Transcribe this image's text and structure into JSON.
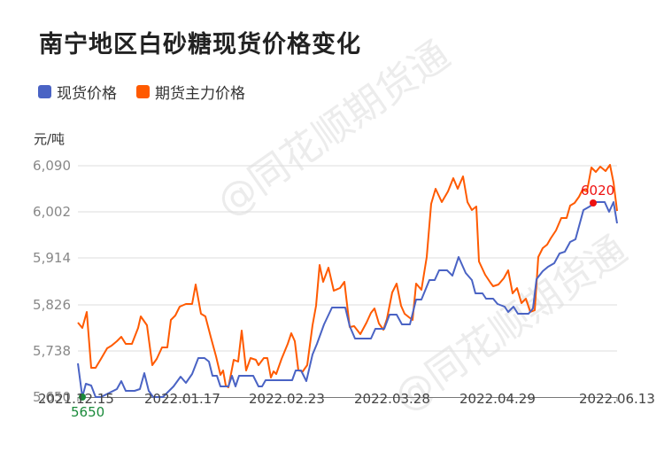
{
  "title": "南宁地区白砂糖现货价格变化",
  "legend": [
    {
      "label": "现货价格",
      "color": "#4a63c4"
    },
    {
      "label": "期货主力价格",
      "color": "#ff5a00"
    }
  ],
  "unit": "元/吨",
  "watermark": "@同花顺期货通",
  "annotations": {
    "min_label": "5650",
    "min_color": "#1a8a3a",
    "max_label": "6020",
    "max_color": "#ee1111"
  },
  "chart_data": {
    "type": "line",
    "title": "南宁地区白砂糖现货价格变化",
    "xlabel": "",
    "ylabel": "元/吨",
    "ylim": [
      5650,
      6090
    ],
    "yticks": [
      "6,090",
      "6,002",
      "5,914",
      "5,826",
      "5,738",
      "5,650"
    ],
    "xticks": [
      "2021.12.15",
      "2022.01.17",
      "2022.02.23",
      "2022.03.28",
      "2022.04.29",
      "2022.06.13"
    ],
    "grid": true,
    "legend_position": "top-left",
    "series": [
      {
        "name": "现货价格",
        "color": "#4a63c4",
        "points_xy_pixels": "88,410 93,448 97,433 103,435 108,448 114,448 122,444 132,439 137,430 142,441 152,441 158,439 163,421 168,441 173,448 184,448 196,436 204,425 210,432 217,422 224,404 231,404 236,408 240,424 245,424 249,436 258,436 262,424 266,436 270,424 275,424 286,424 292,436 296,436 300,429 306,429 330,429 334,418 340,418 346,430 353,400 358,388 366,366 375,347 390,347 395,368 401,382 419,382 424,371 434,371 440,355 448,355 454,366 463,366 470,338 476,338 485,316 491,316 496,305 505,305 511,311 518,290 526,308 533,316 537,331 545,331 549,337 557,337 562,343 570,346 574,352 580,346 585,354 597,354 602,348 606,315 613,306 619,301 626,297 632,286 638,284 644,273 650,270 659,237 666,233 673,228 683,228 688,239 693,228 697,252",
        "min": {
          "value": 5650,
          "date": "2021.12.15"
        },
        "max": {
          "value": 6020,
          "date": "2022.06"
        }
      },
      {
        "name": "期货主力价格",
        "color": "#ff5a00",
        "points_xy_pixels": "88,364 93,370 98,352 103,415 108,415 114,405 121,393 126,390 132,385 137,380 142,388 149,388 156,370 159,357 166,367 172,412 177,405 183,392 189,392 193,361 198,356 203,346 210,343 217,343 221,321 227,354 232,357 238,380 244,402 249,423 252,418 255,435 258,437 264,406 269,408 273,373 278,418 283,404 289,406 292,412 298,404 302,404 306,426 309,419 312,422 318,405 325,388 329,376 333,385 337,418 342,419 347,412 353,367 357,345 361,299 365,318 371,302 377,328 384,325 389,318 395,369 400,368 407,377 414,364 419,353 423,348 428,365 433,372 437,360 443,330 448,320 453,345 457,354 462,358 466,361 470,320 476,327 482,290 487,230 492,213 499,228 506,216 512,201 517,213 523,199 528,228 533,237 538,233 541,295 548,310 554,319 557,323 563,321 569,314 574,305 579,331 584,325 589,342 594,337 599,352 604,350 608,290 613,280 618,276 622,269 628,260 634,246 640,246 644,232 649,229 654,222 658,214 663,216 668,189 673,194 678,188 684,193 689,186 693,206 697,238",
        "max": {
          "value": 6090,
          "date": "2022.06"
        },
        "min": {
          "value": 5670,
          "date": "2022.02"
        }
      }
    ]
  }
}
